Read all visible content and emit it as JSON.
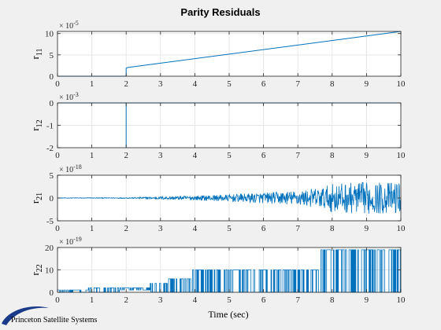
{
  "title": "Parity Residuals",
  "xlabel": "Time (sec)",
  "logo_text": "Princeton Satellite Systems",
  "colors": {
    "line": "#0072bd",
    "grid": "#e6e6e6",
    "axes_bg": "#ffffff",
    "figure_bg": "#f0f0f0",
    "logo": "#1a3a8a"
  },
  "chart_data": [
    {
      "type": "line",
      "ylabel_main": "r",
      "ylabel_sub": "11",
      "exponent_label": "× 10",
      "exponent_power": "-5",
      "xlim": [
        0,
        10
      ],
      "ylim": [
        0,
        10.5
      ],
      "xticks": [
        "0",
        "1",
        "2",
        "3",
        "4",
        "5",
        "6",
        "7",
        "8",
        "9",
        "10"
      ],
      "yticks": [
        {
          "v": 0,
          "label": "0"
        },
        {
          "v": 5,
          "label": "5"
        },
        {
          "v": 10,
          "label": "10"
        }
      ],
      "grid": true,
      "series": [
        {
          "x": [
            0,
            2,
            2,
            2.05,
            10
          ],
          "y": [
            0,
            0,
            1.9,
            2.05,
            10.5
          ]
        }
      ]
    },
    {
      "type": "line",
      "ylabel_main": "r",
      "ylabel_sub": "12",
      "exponent_label": "× 10",
      "exponent_power": "-3",
      "xlim": [
        0,
        10
      ],
      "ylim": [
        -2,
        0
      ],
      "xticks": [
        "0",
        "1",
        "2",
        "3",
        "4",
        "5",
        "6",
        "7",
        "8",
        "9",
        "10"
      ],
      "yticks": [
        {
          "v": 0,
          "label": "0"
        },
        {
          "v": -1,
          "label": "-1"
        },
        {
          "v": -2,
          "label": "-2"
        }
      ],
      "grid": true,
      "series": [
        {
          "x": [
            0,
            2,
            2,
            2,
            10
          ],
          "y": [
            0,
            0,
            -2,
            0,
            0
          ]
        }
      ]
    },
    {
      "type": "line",
      "ylabel_main": "r",
      "ylabel_sub": "21",
      "exponent_label": "× 10",
      "exponent_power": "-18",
      "xlim": [
        0,
        10
      ],
      "ylim": [
        -5,
        5
      ],
      "xticks": [
        "0",
        "1",
        "2",
        "3",
        "4",
        "5",
        "6",
        "7",
        "8",
        "9",
        "10"
      ],
      "yticks": [
        {
          "v": 5,
          "label": "5"
        },
        {
          "v": 0,
          "label": "0"
        },
        {
          "v": -5,
          "label": "-5"
        }
      ],
      "grid": true,
      "noise_envelope": [
        [
          0,
          0.05
        ],
        [
          2,
          0.1
        ],
        [
          3,
          0.3
        ],
        [
          4,
          0.5
        ],
        [
          5,
          0.8
        ],
        [
          6,
          1.2
        ],
        [
          7,
          1.6
        ],
        [
          7.8,
          2.5
        ],
        [
          8,
          3.2
        ],
        [
          9,
          3.5
        ],
        [
          10,
          3.5
        ]
      ],
      "series": []
    },
    {
      "type": "line",
      "ylabel_main": "r",
      "ylabel_sub": "22",
      "exponent_label": "× 10",
      "exponent_power": "-19",
      "xlim": [
        0,
        10
      ],
      "ylim": [
        0,
        20
      ],
      "xticks": [
        "0",
        "1",
        "2",
        "3",
        "4",
        "5",
        "6",
        "7",
        "8",
        "9",
        "10"
      ],
      "yticks": [
        {
          "v": 20,
          "label": "20"
        },
        {
          "v": 10,
          "label": "10"
        },
        {
          "v": 0,
          "label": "0"
        }
      ],
      "grid": true,
      "level_segments": [
        [
          0,
          0.9,
          0,
          1
        ],
        [
          0.9,
          1.8,
          0,
          2
        ],
        [
          1.8,
          2.7,
          1,
          2
        ],
        [
          2.7,
          3.2,
          0,
          4
        ],
        [
          3.2,
          3.9,
          0,
          6
        ],
        [
          3.9,
          4.0,
          0,
          10
        ],
        [
          4.0,
          7.6,
          0,
          10
        ],
        [
          7.6,
          10.0,
          0,
          19
        ]
      ],
      "series": []
    }
  ]
}
